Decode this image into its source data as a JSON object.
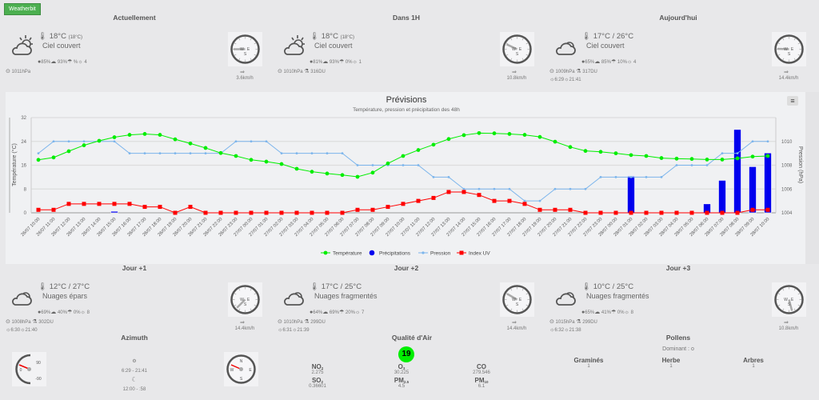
{
  "brand": "Weatherbit",
  "cards": [
    {
      "title": "Actuellement",
      "temp": "18°C",
      "feels": "(18°C)",
      "desc": "Ciel couvert",
      "humidity": "85%",
      "clouds": "93%",
      "precip": "%",
      "uv": "4",
      "pressure": "1011hPa",
      "ozone": "",
      "sunrise": "",
      "sunset": "",
      "wind_speed": "3.6km/h",
      "wind_dir_deg": 270,
      "icon": "partly-sunny-icon"
    },
    {
      "title": "Dans 1H",
      "temp": "18°C",
      "feels": "(18°C)",
      "desc": "Ciel couvert",
      "humidity": "81%",
      "clouds": "93%",
      "precip": "0%",
      "uv": "1",
      "pressure": "1010hPa",
      "ozone": "316DU",
      "sunrise": "",
      "sunset": "",
      "wind_speed": "10.8km/h",
      "wind_dir_deg": 295,
      "icon": "partly-sunny-icon"
    },
    {
      "title": "Aujourd'hui",
      "temp": "17°C /  26°C",
      "feels": "",
      "desc": "Ciel couvert",
      "humidity": "65%",
      "clouds": "85%",
      "precip": "10%",
      "uv": "4",
      "pressure": "1009hPa",
      "ozone": "317DU",
      "sunrise": "6:29",
      "sunset": "21:41",
      "wind_speed": "14.4km/h",
      "wind_dir_deg": 272,
      "icon": "cloud-sun-icon"
    },
    {
      "title": "Jour +1",
      "temp": "12°C /  27°C",
      "feels": "",
      "desc": "Nuages épars",
      "humidity": "69%",
      "clouds": "40%",
      "precip": "0%",
      "uv": "8",
      "pressure": "1008hPa",
      "ozone": "302DU",
      "sunrise": "6:30",
      "sunset": "21:40",
      "wind_speed": "14.4km/h",
      "wind_dir_deg": 225,
      "icon": "cloud-sun-icon"
    },
    {
      "title": "Jour +2",
      "temp": "17°C /  25°C",
      "feels": "",
      "desc": "Nuages fragmentés",
      "humidity": "64%",
      "clouds": "69%",
      "precip": "20%",
      "uv": "7",
      "pressure": "1010hPa",
      "ozone": "299DU",
      "sunrise": "6:31",
      "sunset": "21:39",
      "wind_speed": "14.4km/h",
      "wind_dir_deg": 300,
      "icon": "cloud-sun-icon"
    },
    {
      "title": "Jour +3",
      "temp": "10°C /  25°C",
      "feels": "",
      "desc": "Nuages fragmentés",
      "humidity": "65%",
      "clouds": "41%",
      "precip": "0%",
      "uv": "8",
      "pressure": "1015hPa",
      "ozone": "299DU",
      "sunrise": "6:32",
      "sunset": "21:38",
      "wind_speed": "10.8km/h",
      "wind_dir_deg": 165,
      "icon": "cloud-sun-icon"
    }
  ],
  "chart_data": {
    "type": "line",
    "title": "Prévisions",
    "subtitle": "Température, pression et précipitation des 48h",
    "ylabel_left": "Température (°C)",
    "ylabel_right": "Pression (hPa)",
    "ylim_left": [
      0,
      32
    ],
    "yticks_left": [
      0,
      8,
      16,
      24,
      32
    ],
    "ylim_right": [
      1004,
      1012
    ],
    "yticks_right": [
      1004,
      1006,
      1008,
      1010
    ],
    "grid": true,
    "legend": "bottom",
    "categories": [
      "26/07 10:00",
      "26/07 11:00",
      "26/07 12:00",
      "26/07 13:00",
      "26/07 14:00",
      "26/07 15:00",
      "26/07 16:00",
      "26/07 17:00",
      "26/07 18:00",
      "26/07 19:00",
      "26/07 20:00",
      "26/07 21:00",
      "26/07 22:00",
      "26/07 23:00",
      "27/07 00:00",
      "27/07 01:00",
      "27/07 02:00",
      "27/07 03:00",
      "27/07 04:00",
      "27/07 05:00",
      "27/07 06:00",
      "27/07 07:00",
      "27/07 08:00",
      "27/07 09:00",
      "27/07 10:00",
      "27/07 11:00",
      "27/07 12:00",
      "27/07 13:00",
      "27/07 14:00",
      "27/07 15:00",
      "27/07 16:00",
      "27/07 17:00",
      "27/07 18:00",
      "27/07 19:00",
      "27/07 20:00",
      "27/07 21:00",
      "27/07 22:00",
      "27/07 23:00",
      "28/07 00:00",
      "28/07 01:00",
      "28/07 02:00",
      "28/07 03:00",
      "28/07 04:00",
      "28/07 05:00",
      "28/07 06:00",
      "28/07 07:00",
      "28/07 08:00",
      "28/07 09:00",
      "28/07 10:00"
    ],
    "series": [
      {
        "name": "Température",
        "type": "spline",
        "axis": "left",
        "color": "#00ee00",
        "values": [
          17.8,
          18.6,
          20.7,
          22.7,
          24.2,
          25.4,
          26.2,
          26.5,
          26.2,
          24.7,
          23.3,
          21.8,
          20.1,
          19.1,
          17.8,
          17.2,
          16.4,
          14.8,
          13.8,
          13.2,
          12.7,
          12.1,
          13.5,
          16.6,
          19.1,
          21.1,
          22.9,
          24.8,
          26.1,
          26.8,
          26.7,
          26.5,
          26.2,
          25.5,
          23.9,
          22.1,
          20.8,
          20.5,
          20.0,
          19.4,
          19.1,
          18.4,
          18.2,
          18.1,
          17.9,
          17.9,
          18.3,
          18.9,
          19.1
        ]
      },
      {
        "name": "Précipitations",
        "type": "column",
        "axis": "left",
        "color": "#0000ee",
        "values": [
          0,
          0,
          0,
          0,
          0,
          0.5,
          0,
          0,
          0,
          0,
          0,
          0,
          0,
          0,
          0,
          0,
          0,
          0,
          0,
          0,
          0,
          0,
          0,
          0,
          0,
          0,
          0,
          0,
          0,
          0,
          0,
          0,
          0,
          0,
          0,
          0,
          0,
          0,
          0,
          12.3,
          0,
          0,
          0,
          0,
          3.0,
          10.9,
          28,
          15.5,
          20.1
        ]
      },
      {
        "name": "Pression",
        "type": "line",
        "axis": "right",
        "color": "#7cb5ec",
        "values": [
          1009,
          1010,
          1010,
          1010,
          1010,
          1010,
          1009,
          1009,
          1009,
          1009,
          1009,
          1009,
          1009,
          1010,
          1010,
          1010,
          1009,
          1009,
          1009,
          1009,
          1009,
          1008,
          1008,
          1008,
          1008,
          1008,
          1007,
          1007,
          1006,
          1006,
          1006,
          1006,
          1005,
          1005,
          1006,
          1006,
          1006,
          1007,
          1007,
          1007,
          1007,
          1007,
          1008,
          1008,
          1008,
          1009,
          1009,
          1010,
          1010
        ]
      },
      {
        "name": "Index UV",
        "type": "line",
        "axis": "left",
        "color": "#ff0000",
        "values": [
          1,
          1,
          3,
          3,
          3,
          3,
          3,
          2,
          2,
          0,
          2,
          0,
          0,
          0,
          0,
          0,
          0,
          0,
          0,
          0,
          0,
          1,
          1,
          2,
          3,
          4,
          5,
          7,
          7,
          6,
          4,
          4,
          3,
          1,
          1,
          1,
          0,
          0,
          0,
          0,
          0,
          0,
          0,
          0,
          0,
          0,
          0,
          1,
          1
        ]
      }
    ]
  },
  "azimuth": {
    "title": "Azimuth",
    "gauge_labels": [
      "90",
      "0",
      "-90"
    ],
    "sun_times": "6:29 - 21:41",
    "moon_times": "12:00 - :58",
    "compass_labels": [
      "N",
      "W",
      "E",
      "S"
    ]
  },
  "air": {
    "title": "Qualité d'Air",
    "aqi": "19",
    "aqi_color": "#00ee00",
    "items": [
      {
        "name": "NO",
        "sub": "2",
        "value": "2.275"
      },
      {
        "name": "SO",
        "sub": "2",
        "value": "0.36601"
      },
      {
        "name": "O",
        "sub": "3",
        "value": "30.225"
      },
      {
        "name": "PM",
        "sub": "2.5",
        "value": "4.5"
      },
      {
        "name": "CO",
        "sub": "",
        "value": "279.546"
      },
      {
        "name": "PM",
        "sub": "10",
        "value": "6.1"
      }
    ]
  },
  "pollens": {
    "title": "Pollens",
    "dominant": "Dominant : o",
    "items": [
      {
        "name": "Graminés",
        "value": "1"
      },
      {
        "name": "Herbe",
        "value": "1"
      },
      {
        "name": "Arbres",
        "value": "1"
      }
    ]
  }
}
